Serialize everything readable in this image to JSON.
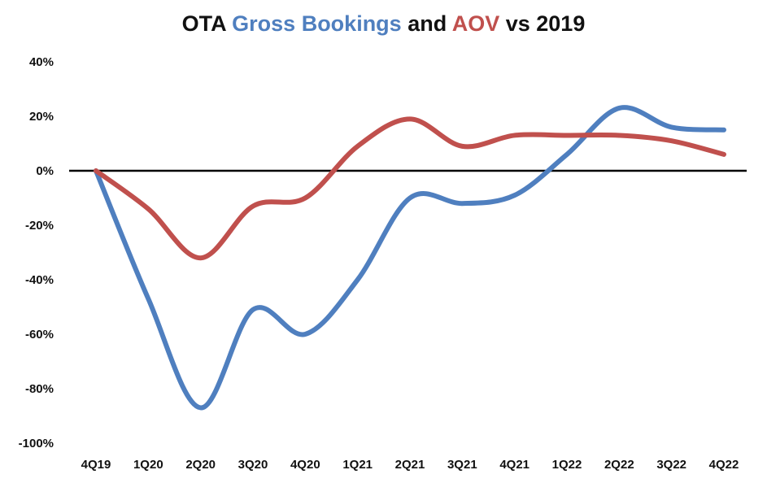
{
  "chart_data": {
    "type": "line",
    "title": {
      "parts": [
        {
          "text": "OTA ",
          "color": "#111111"
        },
        {
          "text": "Gross Bookings",
          "color": "#4F7FBF"
        },
        {
          "text": " and ",
          "color": "#111111"
        },
        {
          "text": "AOV",
          "color": "#C0504D"
        },
        {
          "text": " vs 2019",
          "color": "#111111"
        }
      ]
    },
    "categories": [
      "4Q19",
      "1Q20",
      "2Q20",
      "3Q20",
      "4Q20",
      "1Q21",
      "2Q21",
      "3Q21",
      "4Q21",
      "1Q22",
      "2Q22",
      "3Q22",
      "4Q22"
    ],
    "series": [
      {
        "name": "Gross Bookings",
        "color": "#4F7FBF",
        "values": [
          0,
          -47,
          -87,
          -51,
          -60,
          -40,
          -10,
          -12,
          -9,
          6,
          23,
          16,
          15
        ]
      },
      {
        "name": "AOV",
        "color": "#C0504D",
        "values": [
          0,
          -14,
          -32,
          -13,
          -10,
          9,
          19,
          9,
          13,
          13,
          13,
          11,
          6
        ]
      }
    ],
    "ylim": [
      -100,
      40
    ],
    "yticks": [
      40,
      20,
      0,
      -20,
      -40,
      -60,
      -80,
      -100
    ],
    "ytick_labels": [
      "40%",
      "20%",
      "0%",
      "-20%",
      "-40%",
      "-60%",
      "-80%",
      "-100%"
    ],
    "zero_line": true,
    "grid": false,
    "xlabel": "",
    "ylabel": ""
  }
}
